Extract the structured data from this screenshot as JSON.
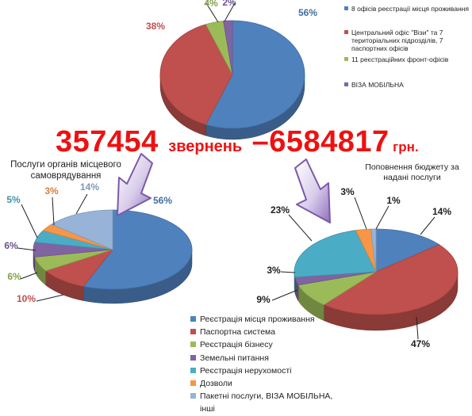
{
  "headline": {
    "count": "357454",
    "count_label": "звернень",
    "dash": "–",
    "amount": "6584817",
    "currency": "грн."
  },
  "colors": {
    "blue": "#4f81bd",
    "red": "#c0504d",
    "green": "#9bbb59",
    "purple": "#8064a2",
    "teal": "#4bacc6",
    "orange": "#f79646",
    "lightblue": "#97b3d8",
    "headline": "#ee1111"
  },
  "chart_data": [
    {
      "type": "pie",
      "style": "3d",
      "title": "",
      "legend_position": "right",
      "slices": [
        {
          "label": "8 офісів реєстрації місця проживання",
          "value": 56,
          "label_text": "56%",
          "color": "#4f81bd"
        },
        {
          "label": "Центральний офіс \"Візи\" та 7 територіальних підрозділів, 7 паспортних офісів",
          "value": 38,
          "label_text": "38%",
          "color": "#c0504d"
        },
        {
          "label": "11 реєстраційних фронт-офісів",
          "value": 4,
          "label_text": "4%",
          "color": "#9bbb59"
        },
        {
          "label": "ВІЗА МОБІЛЬНА",
          "value": 2,
          "label_text": "2%",
          "color": "#8064a2"
        }
      ]
    },
    {
      "type": "pie",
      "style": "3d",
      "title": "Послуги органів місцевого самоврядування",
      "slices": [
        {
          "label": "Реєстрація місця проживання",
          "value": 56,
          "label_text": "56%",
          "color": "#4f81bd"
        },
        {
          "label": "Паспортна система",
          "value": 10,
          "label_text": "10%",
          "color": "#c0504d"
        },
        {
          "label": "Реєстрація бізнесу",
          "value": 6,
          "label_text": "6%",
          "color": "#9bbb59"
        },
        {
          "label": "Земельні питання",
          "value": 6,
          "label_text": "6%",
          "color": "#8064a2"
        },
        {
          "label": "Реєстрація нерухомості",
          "value": 5,
          "label_text": "5%",
          "color": "#4bacc6"
        },
        {
          "label": "Дозволи",
          "value": 3,
          "label_text": "3%",
          "color": "#f79646"
        },
        {
          "label": "Пакетні послуги, ВІЗА МОБІЛЬНА, інші",
          "value": 14,
          "label_text": "14%",
          "color": "#97b3d8"
        }
      ]
    },
    {
      "type": "pie",
      "style": "3d",
      "title": "Поповнення бюджету за надані послуги",
      "slices": [
        {
          "label": "Реєстрація місця проживання",
          "value": 14,
          "label_text": "14%",
          "color": "#4f81bd"
        },
        {
          "label": "Паспортна система",
          "value": 47,
          "label_text": "47%",
          "color": "#c0504d"
        },
        {
          "label": "Реєстрація бізнесу",
          "value": 9,
          "label_text": "9%",
          "color": "#9bbb59"
        },
        {
          "label": "Земельні питання",
          "value": 3,
          "label_text": "3%",
          "color": "#8064a2"
        },
        {
          "label": "Реєстрація нерухомості",
          "value": 23,
          "label_text": "23%",
          "color": "#4bacc6"
        },
        {
          "label": "Дозволи",
          "value": 3,
          "label_text": "3%",
          "color": "#f79646"
        },
        {
          "label": "Пакетні послуги, ВІЗА МОБІЛЬНА, інші",
          "value": 1,
          "label_text": "1%",
          "color": "#97b3d8"
        }
      ]
    }
  ],
  "bottom_legend": [
    {
      "label": "Реєстрація місця проживання",
      "color": "#4f81bd"
    },
    {
      "label": "Паспортна система",
      "color": "#c0504d"
    },
    {
      "label": "Реєстрація бізнесу",
      "color": "#9bbb59"
    },
    {
      "label": "Земельні питання",
      "color": "#8064a2"
    },
    {
      "label": "Реєстрація нерухомості",
      "color": "#4bacc6"
    },
    {
      "label": "Дозволи",
      "color": "#f79646"
    },
    {
      "label": "Пакетні послуги, ВІЗА МОБІЛЬНА, інші",
      "color": "#97b3d8"
    }
  ]
}
